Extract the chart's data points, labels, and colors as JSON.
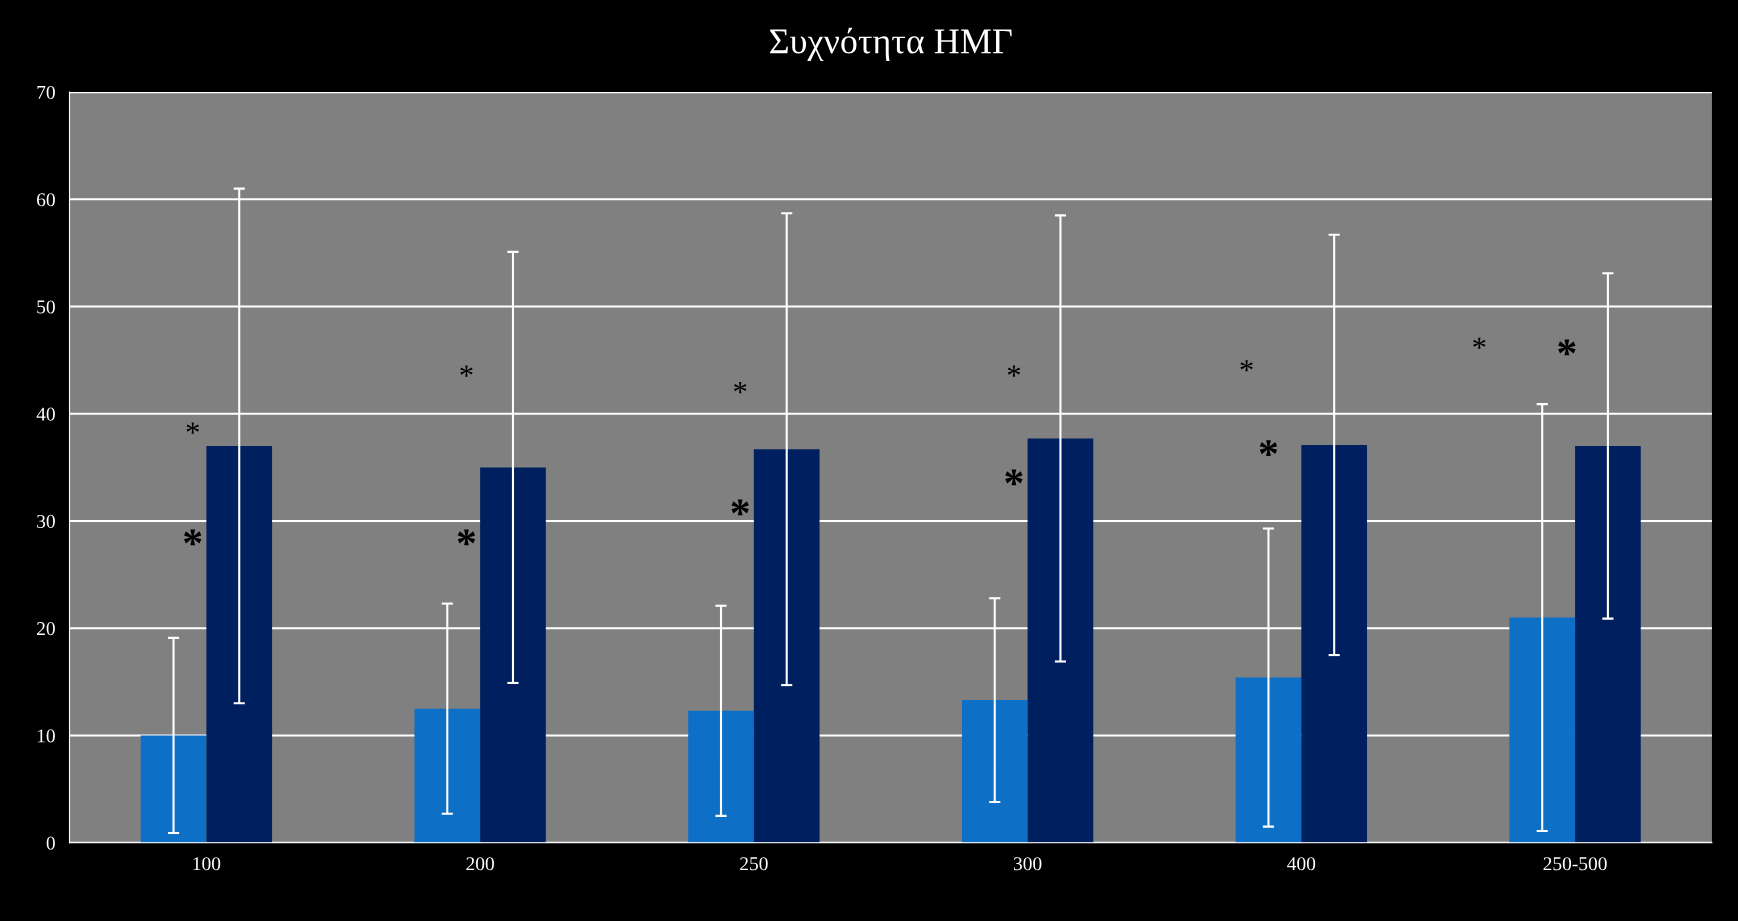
{
  "chart_data": {
    "type": "bar",
    "title": "Συχνότητα ΗΜΓ",
    "categories": [
      "100",
      "200",
      "250",
      "300",
      "400",
      "250-500"
    ],
    "series": [
      {
        "color": "#0e6fc7",
        "values": [
          10,
          12.5,
          12.3,
          13.3,
          15.4,
          21
        ],
        "errors": [
          9.1,
          9.8,
          9.8,
          9.5,
          13.9,
          19.9
        ]
      },
      {
        "color": "#001f5e",
        "values": [
          37,
          35,
          36.7,
          37.7,
          37.1,
          37
        ],
        "errors": [
          24,
          20.1,
          22,
          20.8,
          19.6,
          16.1
        ]
      }
    ],
    "ylim": [
      0,
      70
    ],
    "yticks": [
      0,
      10,
      20,
      30,
      40,
      50,
      60,
      70
    ],
    "grid": "y",
    "legend": false,
    "annotations": [
      "*",
      "*",
      "*",
      "*",
      "*",
      "*",
      "*",
      "*",
      "*",
      "*",
      "*",
      "*"
    ]
  }
}
